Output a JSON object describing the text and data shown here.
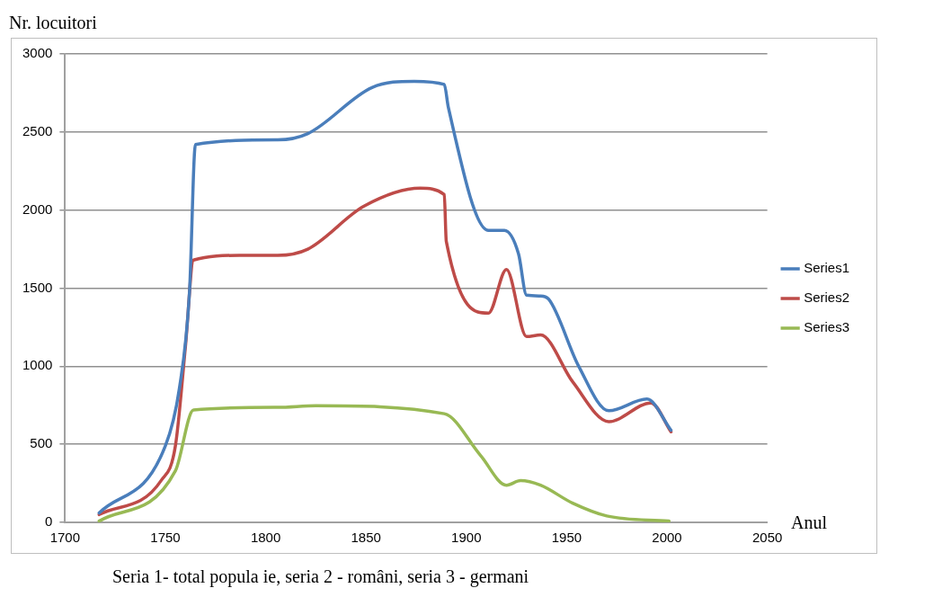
{
  "chart_data": {
    "type": "line",
    "ylabel": "Nr. locuitori",
    "xlabel": "Anul",
    "xlim": [
      1700,
      2050
    ],
    "xticks": [
      1700,
      1750,
      1800,
      1850,
      1900,
      1950,
      2000,
      2050
    ],
    "ylim": [
      0,
      3000
    ],
    "yticks": [
      0,
      500,
      1000,
      1500,
      2000,
      2500,
      3000
    ],
    "grid": "y",
    "legend": "right",
    "marker": "none",
    "line_style": "solid",
    "annotations": [
      "Seria 1- total popula ie, seria 2 - români, seria 3 - germani"
    ],
    "series": [
      {
        "name": "Series1",
        "color": "#4a7ebb",
        "x": [
          1717,
          1750,
          1757,
          1762,
          1765,
          1806,
          1821,
          1853,
          1874,
          1889,
          1891,
          1911,
          1919,
          1926,
          1930,
          1937,
          1941,
          1956,
          1971,
          1990,
          2002
        ],
        "values": [
          60,
          490,
          860,
          1470,
          2420,
          2450,
          2490,
          2785,
          2825,
          2805,
          2660,
          1870,
          1870,
          1720,
          1455,
          1450,
          1430,
          1000,
          715,
          790,
          590
        ]
      },
      {
        "name": "Series2",
        "color": "#be4b48",
        "x": [
          1717,
          1748,
          1755,
          1760,
          1764,
          1787,
          1806,
          1821,
          1849,
          1877,
          1889,
          1890,
          1911,
          1920,
          1930,
          1937,
          1953,
          1971,
          1992,
          2002
        ],
        "values": [
          50,
          270,
          490,
          1125,
          1680,
          1710,
          1710,
          1750,
          2025,
          2140,
          2100,
          1800,
          1340,
          1620,
          1190,
          1200,
          900,
          645,
          765,
          580
        ]
      },
      {
        "name": "Series3",
        "color": "#98b954",
        "x": [
          1717,
          1755,
          1764,
          1806,
          1825,
          1889,
          1907,
          1920,
          1927,
          1937,
          1953,
          1970,
          2001
        ],
        "values": [
          8,
          330,
          720,
          737,
          747,
          696,
          430,
          238,
          268,
          238,
          123,
          41,
          8
        ]
      }
    ]
  }
}
